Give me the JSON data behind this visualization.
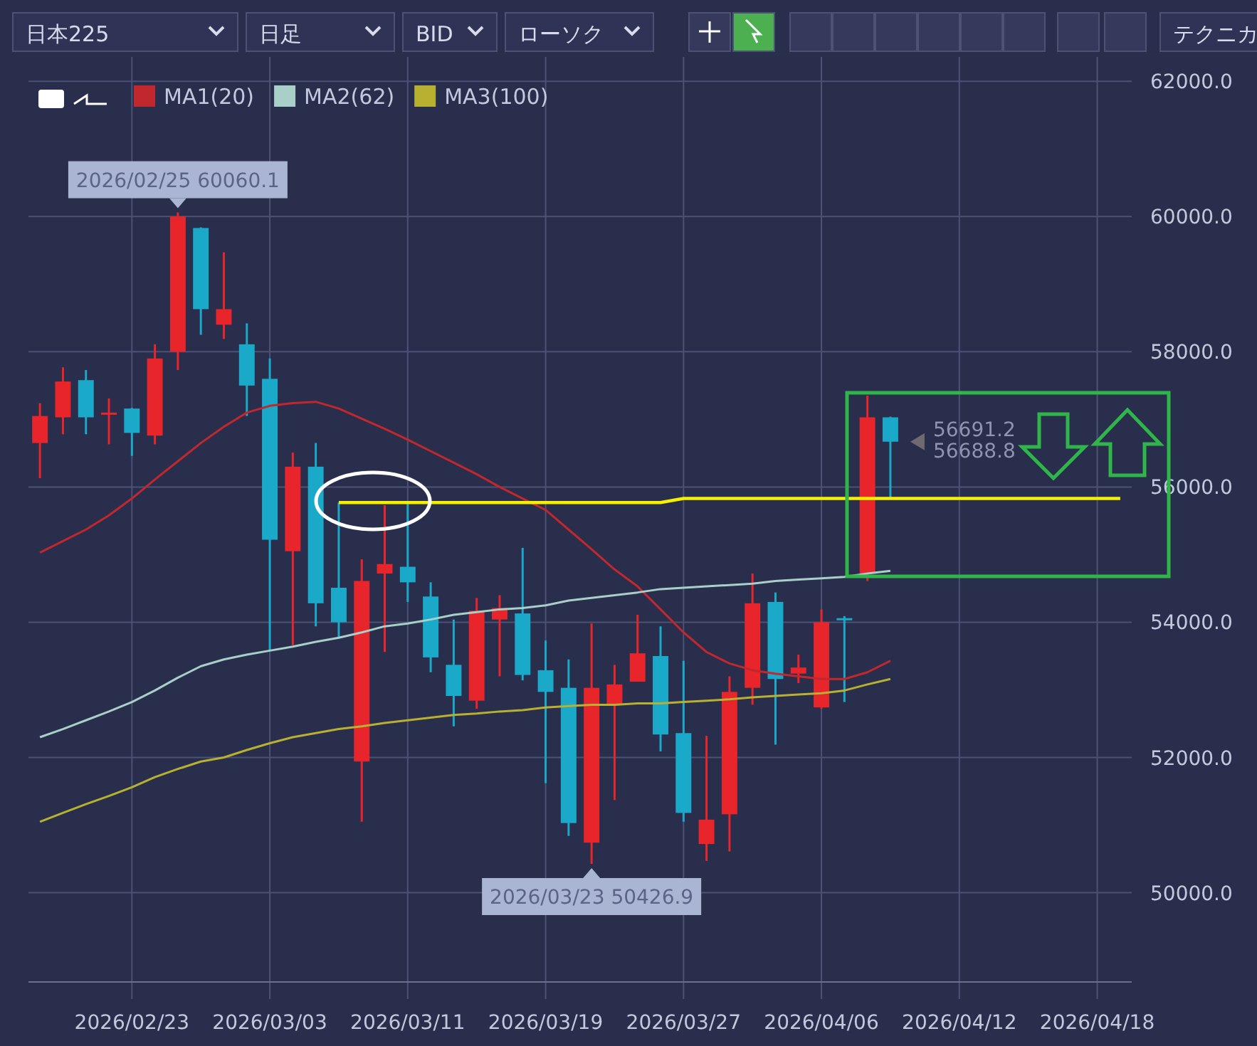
{
  "chart_data": {
    "type": "candlestick",
    "categories": [
      null,
      null,
      null,
      null,
      "2026/02/23",
      null,
      null,
      null,
      null,
      null,
      "2026/03/03",
      null,
      null,
      null,
      null,
      null,
      "2026/03/11",
      null,
      null,
      null,
      null,
      null,
      "2026/03/19",
      null,
      null,
      null,
      null,
      null,
      "2026/03/27",
      null,
      null,
      null,
      null,
      null,
      "2026/04/06",
      null,
      null,
      null,
      null,
      null,
      "2026/04/12",
      null,
      null,
      null,
      null,
      null,
      "2026/04/18",
      null
    ],
    "ohlc": [
      [
        56650,
        57240,
        56130,
        57050
      ],
      [
        57030,
        57770,
        56780,
        57560
      ],
      [
        57580,
        57730,
        56780,
        57030
      ],
      [
        57080,
        57310,
        56630,
        57100
      ],
      [
        57160,
        57170,
        56460,
        56800
      ],
      [
        56760,
        58110,
        56630,
        57900
      ],
      [
        58000,
        60060.1,
        57730,
        60000
      ],
      [
        59830,
        59840,
        58250,
        58630
      ],
      [
        58400,
        59470,
        58190,
        58630
      ],
      [
        58110,
        58420,
        57050,
        57500
      ],
      [
        57600,
        57900,
        53580,
        55220
      ],
      [
        55050,
        56510,
        53660,
        56300
      ],
      [
        56300,
        56650,
        53940,
        54280
      ],
      [
        54510,
        55770,
        53770,
        54000
      ],
      [
        51940,
        54930,
        51050,
        54610
      ],
      [
        54720,
        55730,
        53560,
        54860
      ],
      [
        54820,
        55770,
        54300,
        54590
      ],
      [
        54380,
        54590,
        53260,
        53480
      ],
      [
        53370,
        54040,
        52460,
        52910
      ],
      [
        52840,
        54360,
        52720,
        54170
      ],
      [
        54040,
        54400,
        53200,
        54210
      ],
      [
        54130,
        55100,
        53140,
        53220
      ],
      [
        53290,
        53730,
        51620,
        52970
      ],
      [
        53030,
        53450,
        50840,
        51030
      ],
      [
        50740,
        53980,
        50426.9,
        53030
      ],
      [
        52780,
        53370,
        51370,
        53080
      ],
      [
        53120,
        54110,
        53120,
        53540
      ],
      [
        53500,
        53940,
        52090,
        52340
      ],
      [
        52360,
        53430,
        51050,
        51180
      ],
      [
        50720,
        52320,
        50470,
        51080
      ],
      [
        51160,
        53200,
        50610,
        52970
      ],
      [
        53030,
        54720,
        52780,
        54280
      ],
      [
        54300,
        54440,
        52190,
        53160
      ],
      [
        53240,
        53520,
        53100,
        53330
      ],
      [
        52740,
        54190,
        52720,
        54000
      ],
      [
        54060,
        54090,
        52820,
        54030
      ],
      [
        54720,
        57350,
        54610,
        57030
      ],
      [
        57030,
        57040,
        55830,
        56670
      ],
      null,
      null,
      null,
      null,
      null,
      null,
      null,
      null,
      null,
      null
    ],
    "series": [
      {
        "name": "MA1(20)",
        "type": "line",
        "color": "#c0282d",
        "values": [
          55030,
          55200,
          55370,
          55580,
          55830,
          56110,
          56380,
          56650,
          56890,
          57100,
          57200,
          57240,
          57260,
          57160,
          57010,
          56860,
          56700,
          56530,
          56360,
          56190,
          56000,
          55830,
          55660,
          55370,
          55080,
          54780,
          54530,
          54190,
          53850,
          53560,
          53390,
          53290,
          53240,
          53200,
          53160,
          53160,
          53260,
          53430,
          null,
          null,
          null,
          null,
          null,
          null,
          null,
          null,
          null,
          null
        ]
      },
      {
        "name": "MA2(62)",
        "type": "line",
        "color": "#a8cfc8",
        "values": [
          52300,
          52420,
          52550,
          52680,
          52820,
          52990,
          53180,
          53350,
          53450,
          53520,
          53580,
          53640,
          53710,
          53770,
          53850,
          53940,
          53980,
          54040,
          54110,
          54150,
          54190,
          54210,
          54250,
          54320,
          54360,
          54400,
          54440,
          54490,
          54510,
          54530,
          54550,
          54570,
          54610,
          54630,
          54650,
          54670,
          54720,
          54760,
          null,
          null,
          null,
          null,
          null,
          null,
          null,
          null,
          null,
          null
        ]
      },
      {
        "name": "MA3(100)",
        "type": "line",
        "color": "#b8b030",
        "values": [
          51050,
          51180,
          51310,
          51430,
          51560,
          51710,
          51830,
          51940,
          52000,
          52110,
          52210,
          52300,
          52360,
          52420,
          52460,
          52510,
          52550,
          52590,
          52630,
          52650,
          52680,
          52700,
          52740,
          52760,
          52780,
          52780,
          52800,
          52800,
          52820,
          52840,
          52860,
          52890,
          52910,
          52930,
          52950,
          52990,
          53080,
          53160,
          null,
          null,
          null,
          null,
          null,
          null,
          null,
          null,
          null,
          null
        ]
      },
      {
        "type": "line",
        "color": "#f5f000",
        "values": [
          null,
          null,
          null,
          null,
          null,
          null,
          null,
          null,
          null,
          null,
          null,
          null,
          null,
          55770,
          55770,
          55770,
          55770,
          55770,
          55770,
          55770,
          55770,
          55770,
          55770,
          55770,
          55770,
          55770,
          55770,
          55770,
          55830,
          55830,
          55830,
          55830,
          55830,
          55830,
          55830,
          55830,
          55830,
          55830,
          55830,
          55830,
          55830,
          55830,
          55830,
          55830,
          55830,
          55830,
          55830,
          55830
        ]
      }
    ],
    "ylim": [
      48680,
      62360
    ],
    "yticks": [
      {
        "value": 50000,
        "label": "50000.0"
      },
      {
        "value": 52000,
        "label": "52000.0"
      },
      {
        "value": 54000,
        "label": "54000.0"
      },
      {
        "value": 56000,
        "label": "56000.0"
      },
      {
        "value": 58000,
        "label": "58000.0"
      },
      {
        "value": 60000,
        "label": "60000.0"
      },
      {
        "value": 62000,
        "label": "62000.0"
      }
    ],
    "grid": true,
    "legend": "top left",
    "annotations": [
      "日本225",
      "日足",
      "BID",
      "ローソク",
      "テクニカ",
      {
        "text": "2026/02/25 60060.1",
        "y": 60060.1
      },
      {
        "text": "2026/03/23 50426.9",
        "y": 50426.9
      },
      "56691.2",
      "56688.8"
    ]
  }
}
